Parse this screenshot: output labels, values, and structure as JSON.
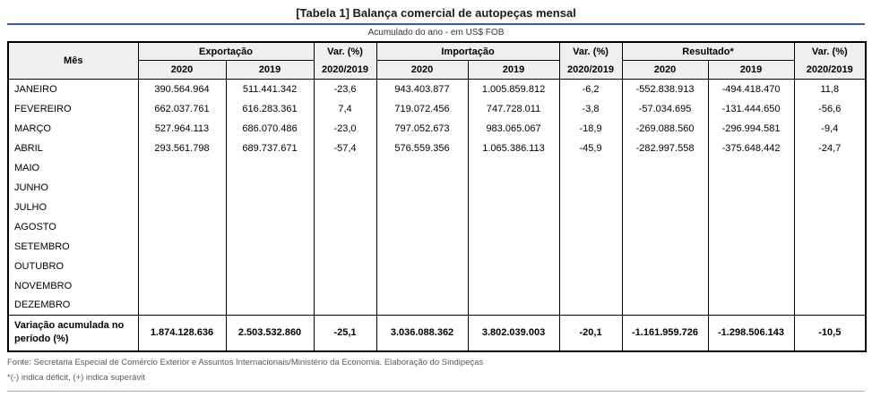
{
  "colors": {
    "title_rule": "#3b5ba5",
    "header_bg": "#efefef"
  },
  "header": {
    "mes": "Mês",
    "exportacao": "Exportação",
    "importacao": "Importação",
    "resultado": "Resultado*",
    "var_line1": "Var. (%)",
    "var_line2": "2020/2019",
    "y2020": "2020",
    "y2019": "2019"
  },
  "footer": {
    "fonte": "Fonte: Secretaria Especial de Comércio Exterior e Assuntos Internacionais/Ministério da Economia. Elaboração do Sindipeças",
    "nota": "*(-) indica déficit, (+) indica superávit"
  },
  "chart_data": {
    "type": "table",
    "title": "[Tabela 1] Balança comercial de autopeças mensal",
    "subtitle": "Acumulado do ano - em US$ FOB",
    "columns": [
      "Mês",
      "Exportação 2020",
      "Exportação 2019",
      "Var. (%) 2020/2019",
      "Importação 2020",
      "Importação 2019",
      "Var. (%) 2020/2019",
      "Resultado 2020",
      "Resultado 2019",
      "Var. (%) 2020/2019"
    ],
    "rows": [
      [
        "JANEIRO",
        "390.564.964",
        "511.441.342",
        "-23,6",
        "943.403.877",
        "1.005.859.812",
        "-6,2",
        "-552.838.913",
        "-494.418.470",
        "11,8"
      ],
      [
        "FEVEREIRO",
        "662.037.761",
        "616.283.361",
        "7,4",
        "719.072.456",
        "747.728.011",
        "-3,8",
        "-57.034.695",
        "-131.444.650",
        "-56,6"
      ],
      [
        "MARÇO",
        "527.964.113",
        "686.070.486",
        "-23,0",
        "797.052.673",
        "983.065.067",
        "-18,9",
        "-269.088.560",
        "-296.994.581",
        "-9,4"
      ],
      [
        "ABRIL",
        "293.561.798",
        "689.737.671",
        "-57,4",
        "576.559.356",
        "1.065.386.113",
        "-45,9",
        "-282.997.558",
        "-375.648.442",
        "-24,7"
      ],
      [
        "MAIO",
        "",
        "",
        "",
        "",
        "",
        "",
        "",
        "",
        ""
      ],
      [
        "JUNHO",
        "",
        "",
        "",
        "",
        "",
        "",
        "",
        "",
        ""
      ],
      [
        "JULHO",
        "",
        "",
        "",
        "",
        "",
        "",
        "",
        "",
        ""
      ],
      [
        "AGOSTO",
        "",
        "",
        "",
        "",
        "",
        "",
        "",
        "",
        ""
      ],
      [
        "SETEMBRO",
        "",
        "",
        "",
        "",
        "",
        "",
        "",
        "",
        ""
      ],
      [
        "OUTUBRO",
        "",
        "",
        "",
        "",
        "",
        "",
        "",
        "",
        ""
      ],
      [
        "NOVEMBRO",
        "",
        "",
        "",
        "",
        "",
        "",
        "",
        "",
        ""
      ],
      [
        "DEZEMBRO",
        "",
        "",
        "",
        "",
        "",
        "",
        "",
        "",
        ""
      ]
    ],
    "total_row": [
      "Variação acumulada no período (%)",
      "1.874.128.636",
      "2.503.532.860",
      "-25,1",
      "3.036.088.362",
      "3.802.039.003",
      "-20,1",
      "-1.161.959.726",
      "-1.298.506.143",
      "-10,5"
    ]
  }
}
